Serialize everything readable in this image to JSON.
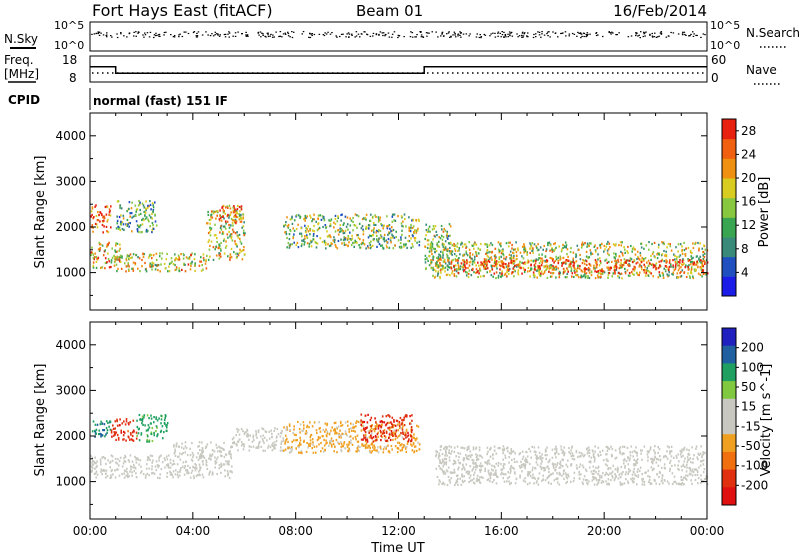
{
  "header": {
    "station": "Fort Hays East (fitACF)",
    "beam": "Beam 01",
    "date": "16/Feb/2014"
  },
  "top_panels": {
    "nsky_label": "N.Sky",
    "nsearch_label": "N.Search",
    "freq_label_line1": "Freq.",
    "freq_label_line2": "[MHz]",
    "nave_label": "Nave",
    "cpid_label": "CPID",
    "cpid_value": "normal (fast) 151 IF",
    "nsky_ticks": [
      "10^5",
      "10^0"
    ],
    "nsearch_ticks": [
      "10^5",
      "10^0"
    ],
    "freq_ticks": [
      "18",
      "8"
    ],
    "nave_ticks": [
      "60",
      "0"
    ],
    "freq_series": {
      "x_hours": [
        0,
        1.0,
        1.0,
        13.0,
        13.0,
        24
      ],
      "mhz": [
        14.3,
        14.3,
        10.6,
        10.6,
        14.3,
        14.3
      ]
    }
  },
  "colors": {
    "power_scale": [
      "#1c1ce8",
      "#2050c0",
      "#3a8a7a",
      "#3aa550",
      "#88c840",
      "#d8cc20",
      "#f09010",
      "#f06010",
      "#e82010"
    ],
    "velocity_scale": [
      "#2020c0",
      "#2060a0",
      "#20a060",
      "#80c840",
      "#c8c8c0",
      "#c8c8c0",
      "#f0a020",
      "#f07010",
      "#e03010",
      "#e01010"
    ]
  },
  "chart_data": [
    {
      "type": "heatmap",
      "name": "power",
      "xlabel": "",
      "ylabel": "Slant Range [km]",
      "xlim": [
        0,
        24
      ],
      "ylim": [
        180,
        4500
      ],
      "y_ticks": [
        1000,
        2000,
        3000,
        4000
      ],
      "y_tick_labels": [
        "1000",
        "2000",
        "3000",
        "4000"
      ],
      "colorbar": {
        "label": "Power [dB]",
        "range": [
          0,
          30
        ],
        "ticks": [
          4,
          8,
          12,
          16,
          20,
          24,
          28
        ],
        "tick_labels": [
          "4",
          "8",
          "12",
          "16",
          "20",
          "24",
          "28"
        ]
      },
      "echo_regions": [
        {
          "t0": 0.0,
          "t1": 0.8,
          "r0": 1900,
          "r1": 2500,
          "level": 26
        },
        {
          "t0": 0.0,
          "t1": 1.2,
          "r0": 1100,
          "r1": 1700,
          "level": 20
        },
        {
          "t0": 1.0,
          "t1": 4.5,
          "r0": 1050,
          "r1": 1450,
          "level": 18
        },
        {
          "t0": 1.0,
          "t1": 2.6,
          "r0": 1900,
          "r1": 2600,
          "level": 12
        },
        {
          "t0": 4.5,
          "t1": 6.0,
          "r0": 1300,
          "r1": 2400,
          "level": 17
        },
        {
          "t0": 5.0,
          "t1": 5.9,
          "r0": 2100,
          "r1": 2500,
          "level": 24
        },
        {
          "t0": 7.5,
          "t1": 12.8,
          "r0": 1550,
          "r1": 2300,
          "level": 14
        },
        {
          "t0": 13.0,
          "t1": 14.0,
          "r0": 1100,
          "r1": 2100,
          "level": 15
        },
        {
          "t0": 13.2,
          "t1": 24.0,
          "r0": 900,
          "r1": 1700,
          "level": 16
        },
        {
          "t0": 14.0,
          "t1": 24.0,
          "r0": 1000,
          "r1": 1300,
          "level": 26
        }
      ]
    },
    {
      "type": "heatmap",
      "name": "velocity",
      "xlabel": "Time UT",
      "ylabel": "Slant Range [km]",
      "xlim": [
        0,
        24
      ],
      "ylim": [
        180,
        4500
      ],
      "x_tick_labels": [
        "00:00",
        "04:00",
        "08:00",
        "12:00",
        "16:00",
        "20:00",
        "00:00"
      ],
      "y_ticks": [
        1000,
        2000,
        3000,
        4000
      ],
      "y_tick_labels": [
        "1000",
        "2000",
        "3000",
        "4000"
      ],
      "colorbar": {
        "label": "Velocity [m s^-1]",
        "range": [
          -250,
          250
        ],
        "ticks": [
          200,
          100,
          50,
          15,
          -15,
          -50,
          -100,
          -200
        ],
        "tick_labels": [
          "200",
          "100",
          "50",
          "15",
          "-15",
          "-50",
          "-100",
          "-200"
        ]
      },
      "echo_regions": [
        {
          "t0": 0.0,
          "t1": 3.2,
          "r0": 1100,
          "r1": 1600,
          "level": 0
        },
        {
          "t0": 3.2,
          "t1": 5.5,
          "r0": 1100,
          "r1": 1900,
          "level": 0
        },
        {
          "t0": 0.0,
          "t1": 0.8,
          "r0": 2000,
          "r1": 2400,
          "level": 150
        },
        {
          "t0": 0.8,
          "t1": 1.8,
          "r0": 1900,
          "r1": 2400,
          "level": -180
        },
        {
          "t0": 1.8,
          "t1": 3.0,
          "r0": 1900,
          "r1": 2500,
          "level": 120
        },
        {
          "t0": 5.5,
          "t1": 7.5,
          "r0": 1700,
          "r1": 2200,
          "level": 0
        },
        {
          "t0": 7.5,
          "t1": 12.8,
          "r0": 1650,
          "r1": 2350,
          "level": -70
        },
        {
          "t0": 10.5,
          "t1": 12.5,
          "r0": 1900,
          "r1": 2500,
          "level": -190
        },
        {
          "t0": 13.4,
          "t1": 24.0,
          "r0": 950,
          "r1": 1800,
          "level": 0
        }
      ]
    }
  ]
}
